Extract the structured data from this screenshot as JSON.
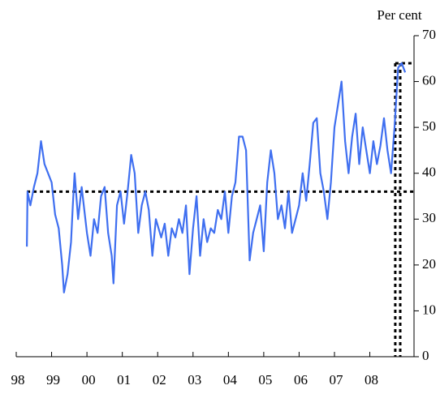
{
  "chart_data": {
    "type": "line",
    "y_axis_label": "Per cent",
    "x": [
      1998.3,
      1998.32,
      1998.4,
      1998.5,
      1998.6,
      1998.7,
      1998.8,
      1998.9,
      1999.0,
      1999.1,
      1999.2,
      1999.3,
      1999.35,
      1999.45,
      1999.55,
      1999.6,
      1999.65,
      1999.75,
      1999.85,
      2000.0,
      2000.1,
      2000.2,
      2000.3,
      2000.4,
      2000.5,
      2000.6,
      2000.7,
      2000.75,
      2000.85,
      2000.95,
      2001.05,
      2001.15,
      2001.25,
      2001.35,
      2001.45,
      2001.55,
      2001.65,
      2001.75,
      2001.85,
      2001.95,
      2002.1,
      2002.2,
      2002.3,
      2002.4,
      2002.5,
      2002.6,
      2002.7,
      2002.8,
      2002.9,
      2003.0,
      2003.1,
      2003.2,
      2003.3,
      2003.4,
      2003.5,
      2003.6,
      2003.7,
      2003.8,
      2003.9,
      2004.0,
      2004.1,
      2004.2,
      2004.3,
      2004.4,
      2004.5,
      2004.6,
      2004.7,
      2004.8,
      2004.9,
      2005.0,
      2005.1,
      2005.2,
      2005.3,
      2005.4,
      2005.5,
      2005.6,
      2005.7,
      2005.8,
      2005.9,
      2006.0,
      2006.1,
      2006.2,
      2006.3,
      2006.4,
      2006.5,
      2006.6,
      2006.7,
      2006.8,
      2006.9,
      2007.0,
      2007.1,
      2007.2,
      2007.3,
      2007.4,
      2007.5,
      2007.6,
      2007.7,
      2007.8,
      2007.9,
      2008.0,
      2008.1,
      2008.2,
      2008.3,
      2008.4,
      2008.5,
      2008.6,
      2008.7,
      2008.8,
      2008.9,
      2009.0
    ],
    "series": [
      {
        "color": "#3f6ff0",
        "values": [
          24,
          36,
          33,
          37,
          40,
          47,
          42,
          40,
          38,
          31,
          28,
          20,
          14,
          18,
          25,
          33,
          40,
          30,
          37,
          27,
          22,
          30,
          27,
          35,
          37,
          27,
          22,
          16,
          33,
          36,
          29,
          36,
          44,
          40,
          27,
          33,
          36,
          32,
          22,
          30,
          26,
          29,
          22,
          28,
          26,
          30,
          27,
          33,
          18,
          28,
          35,
          22,
          30,
          25,
          28,
          27,
          32,
          30,
          36,
          27,
          35,
          38,
          48,
          48,
          45,
          21,
          27,
          30,
          33,
          23,
          38,
          45,
          40,
          30,
          33,
          28,
          36,
          27,
          30,
          33,
          40,
          34,
          42,
          51,
          52,
          40,
          36,
          30,
          38,
          50,
          55,
          60,
          47,
          40,
          48,
          53,
          42,
          50,
          45,
          40,
          47,
          42,
          46,
          52,
          45,
          40,
          50,
          63,
          64,
          62
        ]
      }
    ],
    "hline": 36,
    "vlines": [
      2008.72,
      2008.86
    ],
    "vline_top": 64,
    "xlim": [
      1998,
      2009.25
    ],
    "ylim": [
      0,
      70
    ],
    "xticks": [
      {
        "value": 1998,
        "label": "98"
      },
      {
        "value": 1999,
        "label": "99"
      },
      {
        "value": 2000,
        "label": "00"
      },
      {
        "value": 2001,
        "label": "01"
      },
      {
        "value": 2002,
        "label": "02"
      },
      {
        "value": 2003,
        "label": "03"
      },
      {
        "value": 2004,
        "label": "04"
      },
      {
        "value": 2005,
        "label": "05"
      },
      {
        "value": 2006,
        "label": "06"
      },
      {
        "value": 2007,
        "label": "07"
      },
      {
        "value": 2008,
        "label": "08"
      }
    ],
    "yticks": [
      0,
      10,
      20,
      30,
      40,
      50,
      60,
      70
    ]
  }
}
